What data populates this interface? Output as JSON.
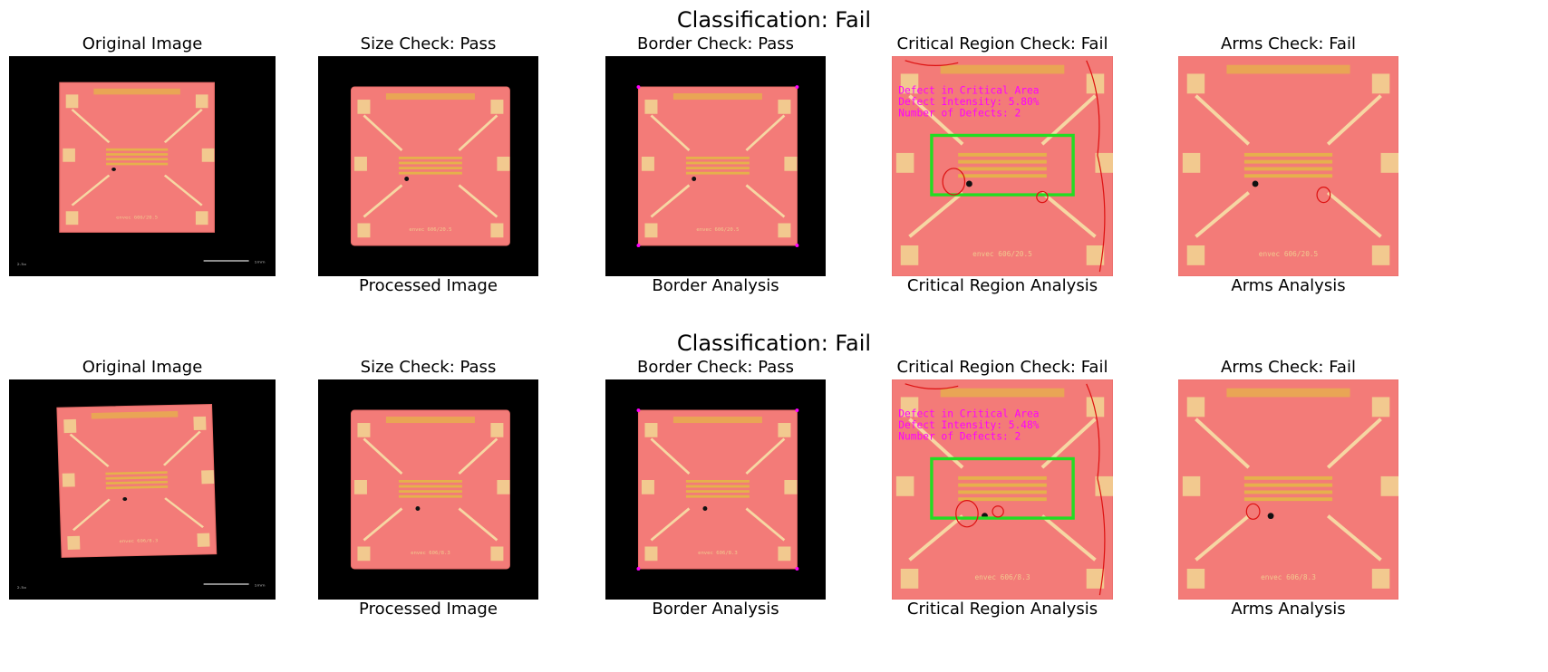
{
  "rows": [
    {
      "classification": "Classification: Fail",
      "titles": [
        "Original Image",
        "Size Check: Pass",
        "Border Check: Pass",
        "Critical Region Check: Fail",
        "Arms Check: Fail"
      ],
      "captions": [
        "Processed Image",
        "Border Analysis",
        "Critical Region Analysis",
        "Arms Analysis"
      ],
      "chip_label": "606/20.5",
      "chip_prefix": "envec",
      "scale_text": "1mm",
      "mag_text": "2.5x",
      "overlay": [
        "Defect in Critical Area",
        "Defect Intensity: 5.80%",
        "Number of Defects: 2"
      ]
    },
    {
      "classification": "Classification: Fail",
      "titles": [
        "Original Image",
        "Size Check: Pass",
        "Border Check: Pass",
        "Critical Region Check: Fail",
        "Arms Check: Fail"
      ],
      "captions": [
        "Processed Image",
        "Border Analysis",
        "Critical Region Analysis",
        "Arms Analysis"
      ],
      "chip_label": "606/8.3",
      "chip_prefix": "envec",
      "scale_text": "1mm",
      "mag_text": "2.5x",
      "overlay": [
        "Defect in Critical Area",
        "Defect Intensity: 5.48%",
        "Number of Defects: 2"
      ]
    }
  ],
  "colors": {
    "chip": "#f37b78",
    "chip_edge": "#e76a67",
    "arm": "#f6d7a3",
    "pad": "#f2c98f",
    "comb": "#e6b04c",
    "box": "#22dd22",
    "contour": "#dd1111",
    "overlay_text": "#ff00ff",
    "background": "#000000"
  }
}
